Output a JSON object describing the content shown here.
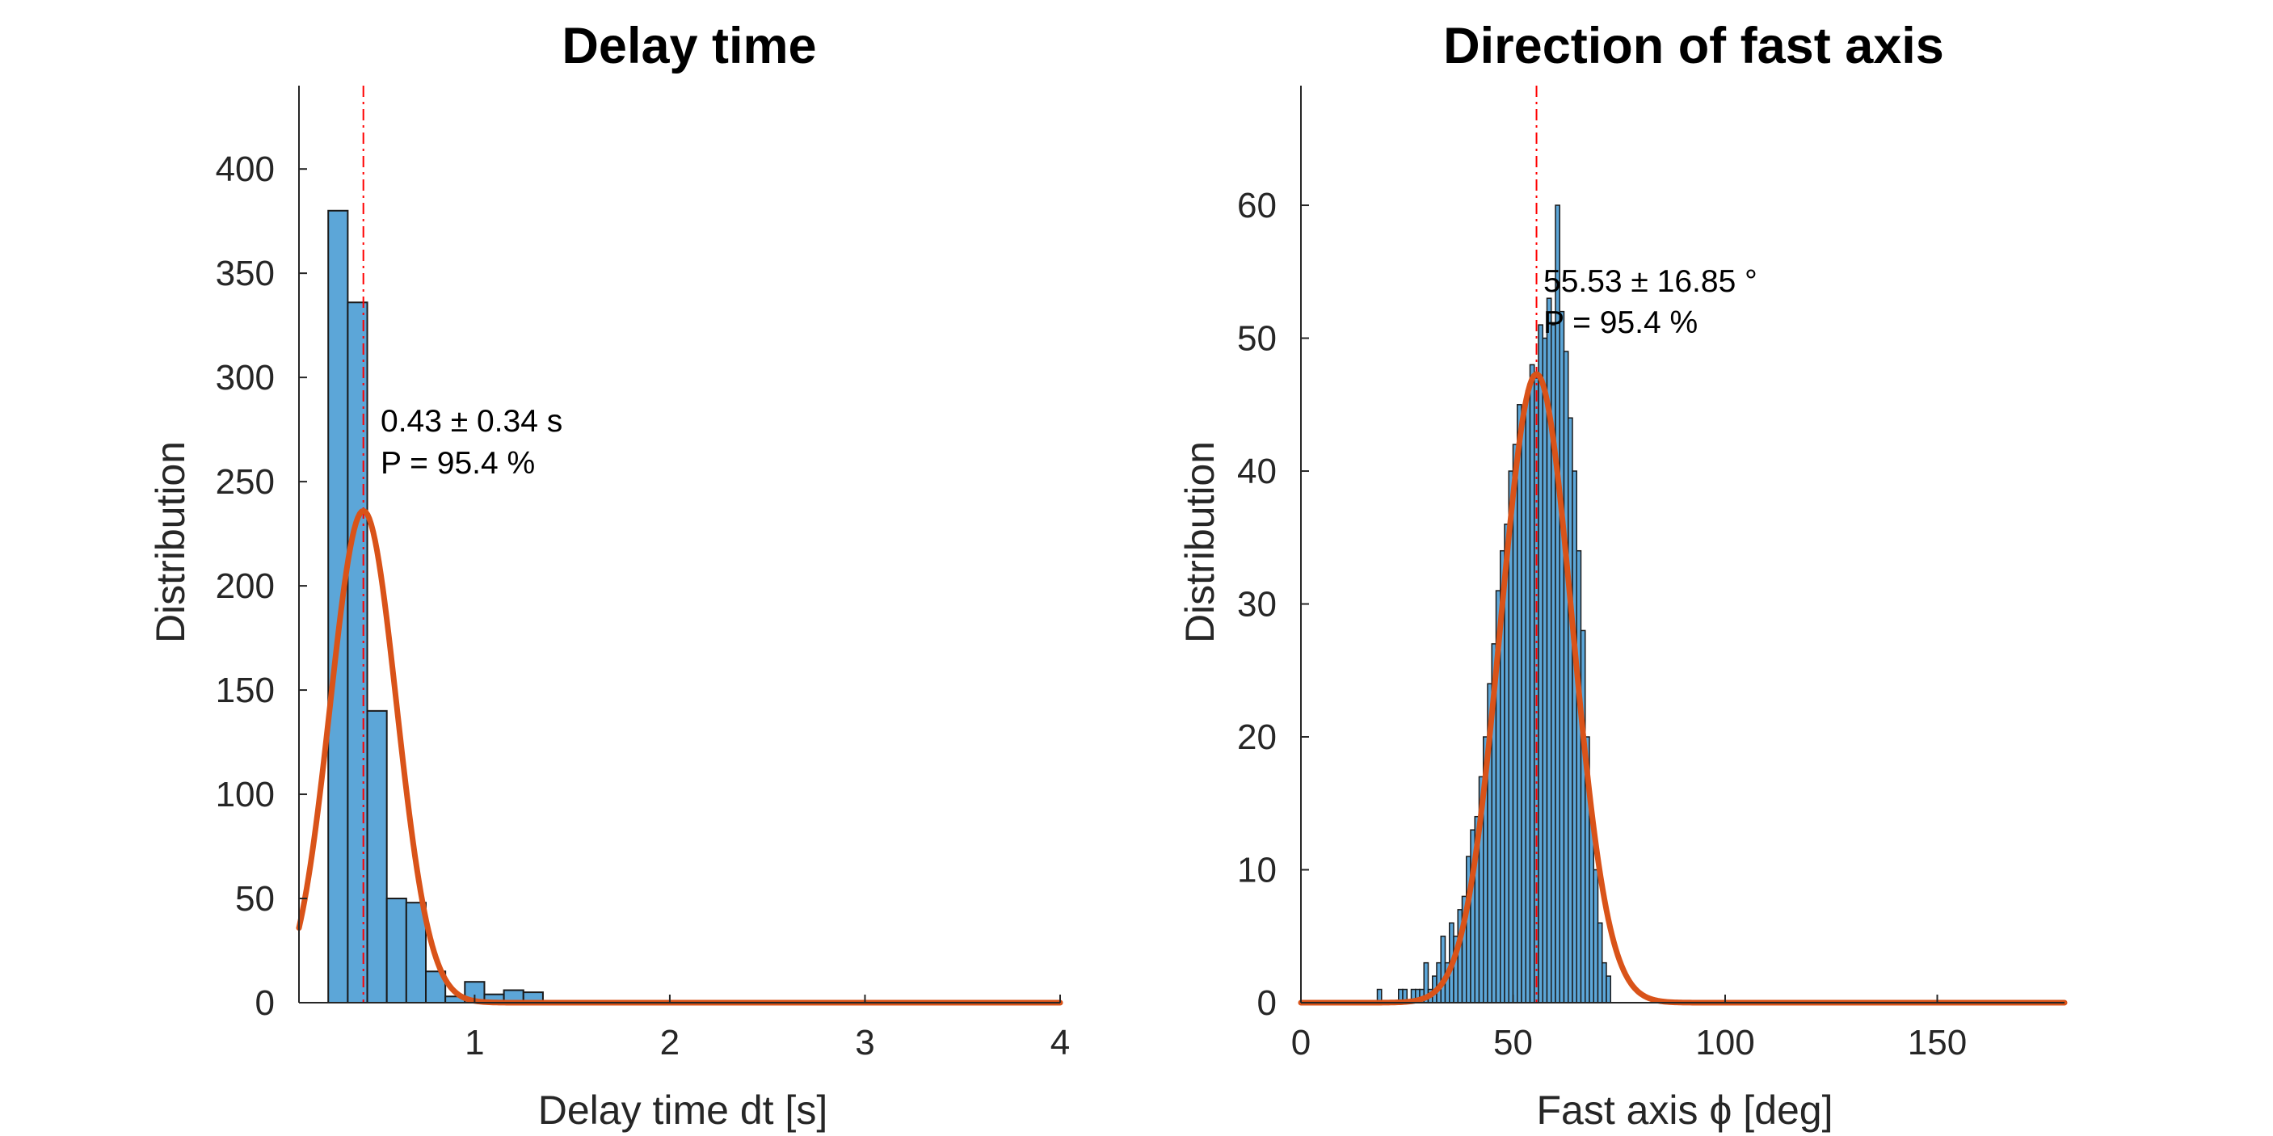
{
  "colors": {
    "bar_fill": "#5ca6d8",
    "bar_edge": "#1a1a1a",
    "fit_line": "#d95319",
    "mean_line": "#ff0000",
    "axis": "#262626"
  },
  "chart_data": [
    {
      "type": "bar",
      "histogram": true,
      "title": "Delay time",
      "xlabel": "Delay time dt [s]",
      "ylabel": "Distribution",
      "xlim": [
        0.1,
        4
      ],
      "ylim": [
        0,
        440
      ],
      "xticks": [
        1,
        2,
        3,
        4
      ],
      "yticks": [
        0,
        50,
        100,
        150,
        200,
        250,
        300,
        350,
        400
      ],
      "grid": false,
      "bin_edges": [
        0.25,
        0.35,
        0.45,
        0.55,
        0.65,
        0.75,
        0.85,
        0.95,
        1.05,
        1.15,
        1.25,
        1.35
      ],
      "values": [
        380,
        336,
        140,
        50,
        48,
        15,
        3,
        10,
        4,
        6,
        5
      ],
      "fit": {
        "type": "gaussian",
        "mean": 0.43,
        "peak": 236,
        "sigma": 0.17
      },
      "mean_line": 0.43,
      "annotation": [
        "0.43 ± 0.34 s",
        "P = 95.4 %"
      ]
    },
    {
      "type": "bar",
      "histogram": true,
      "title": "Direction of fast axis",
      "xlabel": "Fast axis ϕ [deg]",
      "ylabel": "Distribution",
      "xlim": [
        0,
        180
      ],
      "ylim": [
        0,
        69
      ],
      "xticks": [
        0,
        50,
        100,
        150
      ],
      "yticks": [
        0,
        10,
        20,
        30,
        40,
        50,
        60
      ],
      "grid": false,
      "bin_edges": [
        18,
        19,
        20,
        21,
        22,
        23,
        24,
        25,
        26,
        27,
        28,
        29,
        30,
        31,
        32,
        33,
        34,
        35,
        36,
        37,
        38,
        39,
        40,
        41,
        42,
        43,
        44,
        45,
        46,
        47,
        48,
        49,
        50,
        51,
        52,
        53,
        54,
        55,
        56,
        57,
        58,
        59,
        60,
        61,
        62,
        63,
        64,
        65,
        66,
        67,
        68,
        69,
        70,
        71,
        72,
        73
      ],
      "values": [
        1,
        0,
        0,
        0,
        0,
        1,
        1,
        0,
        1,
        1,
        1,
        3,
        1,
        2,
        3,
        5,
        3,
        6,
        5,
        7,
        8,
        11,
        13,
        14,
        17,
        20,
        24,
        27,
        31,
        34,
        36,
        40,
        42,
        45,
        44,
        46,
        48,
        47,
        51,
        50,
        53,
        51,
        60,
        52,
        49,
        44,
        40,
        34,
        28,
        20,
        14,
        10,
        6,
        3,
        2
      ],
      "fit": {
        "type": "gaussian",
        "mean": 55.53,
        "peak": 47.3,
        "sigma": 8.425
      },
      "mean_line": 55.53,
      "annotation": [
        "55.53 ± 16.85 °",
        "P = 95.4 %"
      ]
    }
  ]
}
